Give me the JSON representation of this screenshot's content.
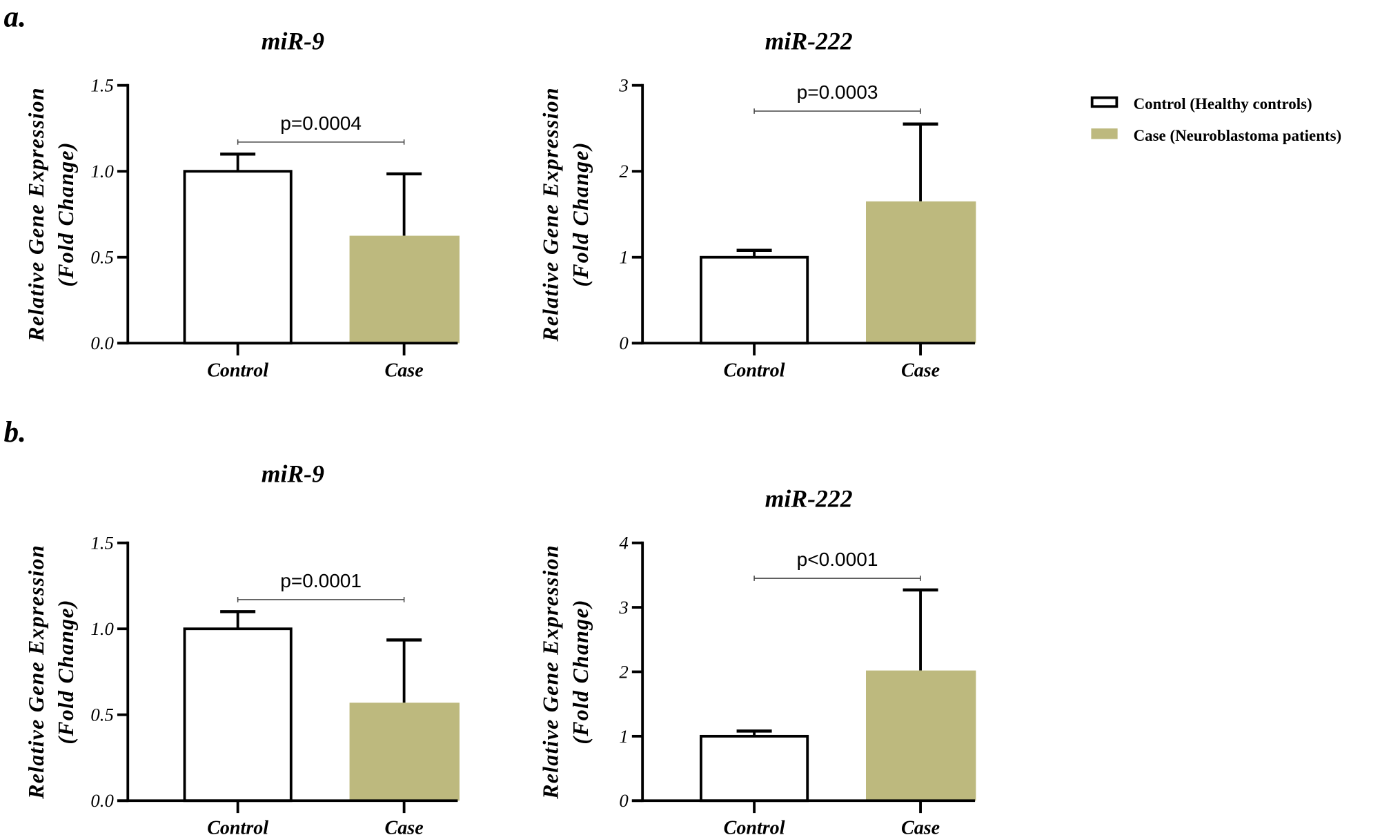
{
  "panel_labels": [
    "a.",
    "b."
  ],
  "legend": {
    "items": [
      {
        "label": "Control (Healthy controls)",
        "fill": "#ffffff",
        "stroke": "#000000"
      },
      {
        "label": "Case (Neuroblastoma patients)",
        "fill": "#BDB97E",
        "stroke": "#BDB97E"
      }
    ]
  },
  "chart_data": [
    {
      "type": "bar",
      "panel": "a.",
      "title": "miR-9",
      "ylabel": [
        "Relative Gene Expression",
        "(Fold Change)"
      ],
      "categories": [
        "Control",
        "Case"
      ],
      "values": [
        1.0,
        0.625
      ],
      "error_upper": [
        1.1,
        0.985
      ],
      "ylim": [
        0,
        1.5
      ],
      "yticks": [
        "0.0",
        "0.5",
        "1.0",
        "1.5"
      ],
      "ytick_values": [
        0,
        0.5,
        1.0,
        1.5
      ],
      "pvalue": "p=0.0004",
      "bracket_y": 1.17,
      "colors": [
        "#ffffff",
        "#BDB97E"
      ],
      "grid": false
    },
    {
      "type": "bar",
      "panel": "a.",
      "title": "miR-222",
      "ylabel": [
        "Relative Gene Expression",
        "(Fold Change)"
      ],
      "categories": [
        "Control",
        "Case"
      ],
      "values": [
        1.0,
        1.65
      ],
      "error_upper": [
        1.08,
        2.55
      ],
      "ylim": [
        0,
        3
      ],
      "yticks": [
        "0",
        "1",
        "2",
        "3"
      ],
      "ytick_values": [
        0,
        1,
        2,
        3
      ],
      "pvalue": "p=0.0003",
      "bracket_y": 2.7,
      "colors": [
        "#ffffff",
        "#BDB97E"
      ],
      "grid": false
    },
    {
      "type": "bar",
      "panel": "b.",
      "title": "miR-9",
      "ylabel": [
        "Relative Gene Expression",
        "(Fold Change)"
      ],
      "categories": [
        "Control",
        "Case"
      ],
      "values": [
        1.0,
        0.57
      ],
      "error_upper": [
        1.1,
        0.935
      ],
      "ylim": [
        0,
        1.5
      ],
      "yticks": [
        "0.0",
        "0.5",
        "1.0",
        "1.5"
      ],
      "ytick_values": [
        0,
        0.5,
        1.0,
        1.5
      ],
      "pvalue": "p=0.0001",
      "bracket_y": 1.17,
      "colors": [
        "#ffffff",
        "#BDB97E"
      ],
      "grid": false
    },
    {
      "type": "bar",
      "panel": "b.",
      "title": "miR-222",
      "ylabel": [
        "Relative Gene Expression",
        "(Fold Change)"
      ],
      "categories": [
        "Control",
        "Case"
      ],
      "values": [
        1.0,
        2.02
      ],
      "error_upper": [
        1.08,
        3.27
      ],
      "ylim": [
        0,
        4
      ],
      "yticks": [
        "0",
        "1",
        "2",
        "3",
        "4"
      ],
      "ytick_values": [
        0,
        1,
        2,
        3,
        4
      ],
      "pvalue": "p<0.0001",
      "bracket_y": 3.45,
      "colors": [
        "#ffffff",
        "#BDB97E"
      ],
      "grid": false
    }
  ]
}
